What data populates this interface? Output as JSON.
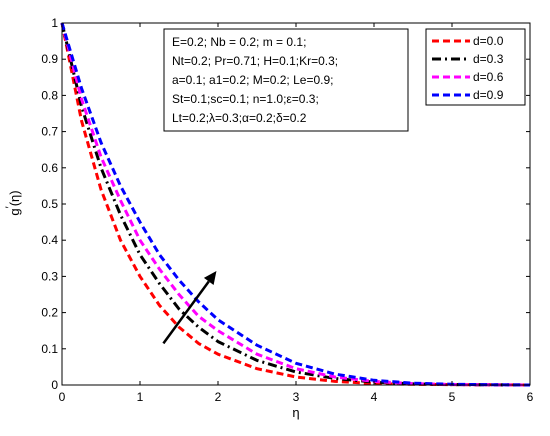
{
  "chart_data": {
    "type": "line",
    "xlabel": "η",
    "ylabel_main": "g",
    "ylabel_prime": "′",
    "ylabel_arg": "(η)",
    "xlim": [
      0,
      6
    ],
    "ylim": [
      0,
      1
    ],
    "x_ticks": [
      0,
      1,
      2,
      3,
      4,
      5,
      6
    ],
    "y_ticks": [
      0,
      0.1,
      0.2,
      0.3,
      0.4,
      0.5,
      0.6,
      0.7,
      0.8,
      0.9,
      1
    ],
    "x_tick_labels": [
      "0",
      "1",
      "2",
      "3",
      "4",
      "5",
      "6"
    ],
    "y_tick_labels": [
      "0",
      "0.1",
      "0.2",
      "0.3",
      "0.4",
      "0.5",
      "0.6",
      "0.7",
      "0.8",
      "0.9",
      "1"
    ],
    "grid": false,
    "legend_position": "top-right",
    "x": [
      0,
      0.25,
      0.5,
      0.75,
      1.0,
      1.25,
      1.5,
      1.75,
      2.0,
      2.5,
      3.0,
      3.5,
      4.0,
      4.5,
      5.0,
      5.5,
      6.0
    ],
    "series": [
      {
        "name": "d=0.0",
        "color": "#ff0000",
        "style": "dash",
        "values": [
          1.0,
          0.73,
          0.54,
          0.4,
          0.3,
          0.22,
          0.16,
          0.115,
          0.085,
          0.045,
          0.022,
          0.01,
          0.004,
          0.002,
          0.001,
          0.0005,
          0.0
        ]
      },
      {
        "name": "d=0.3",
        "color": "#000000",
        "style": "dashdot",
        "values": [
          1.0,
          0.77,
          0.6,
          0.47,
          0.36,
          0.28,
          0.21,
          0.16,
          0.12,
          0.068,
          0.036,
          0.018,
          0.008,
          0.003,
          0.001,
          0.0005,
          0.0
        ]
      },
      {
        "name": "d=0.6",
        "color": "#ff00ff",
        "style": "dash",
        "values": [
          1.0,
          0.79,
          0.63,
          0.51,
          0.4,
          0.32,
          0.25,
          0.19,
          0.15,
          0.085,
          0.045,
          0.022,
          0.01,
          0.004,
          0.0015,
          0.0005,
          0.0
        ]
      },
      {
        "name": "d=0.9",
        "color": "#0000ff",
        "style": "dash",
        "values": [
          1.0,
          0.82,
          0.67,
          0.55,
          0.45,
          0.36,
          0.29,
          0.23,
          0.18,
          0.11,
          0.06,
          0.03,
          0.013,
          0.005,
          0.002,
          0.0007,
          0.0
        ]
      }
    ],
    "annotation_lines": [
      "E=0.2; Nb = 0.2; m = 0.1;",
      "Nt=0.2; Pr=0.71; H=0.1;Kr=0.3;",
      "a=0.1;  a1=0.2; M=0.2; Le=0.9;",
      "St=0.1;sc=0.1; n=1.0;ε=0.3;",
      "Lt=0.2;λ=0.3;α=0.2;δ=0.2"
    ],
    "arrow": {
      "from": [
        1.3,
        0.115
      ],
      "to": [
        1.98,
        0.315
      ],
      "color": "#000000"
    }
  }
}
